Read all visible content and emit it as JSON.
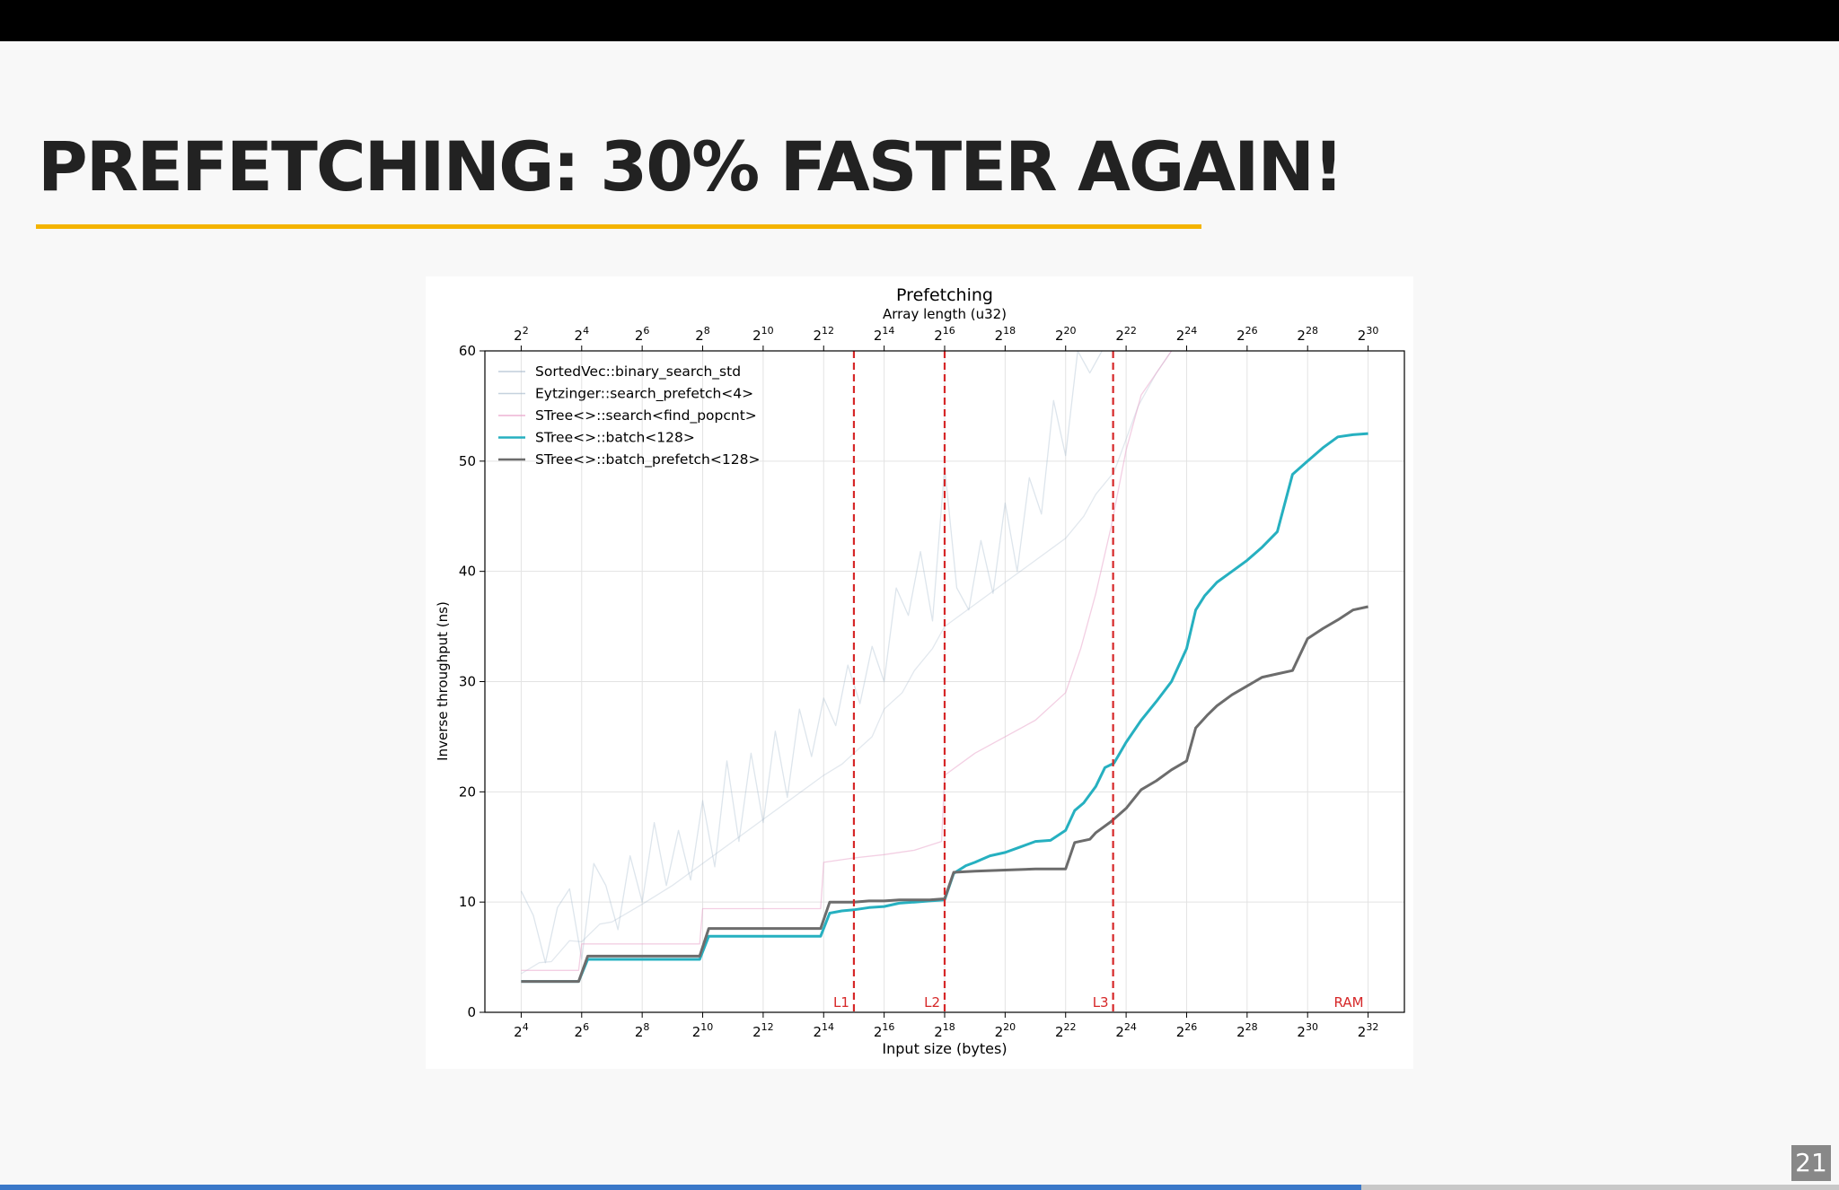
{
  "slide": {
    "title": "PREFETCHING: 30% FASTER AGAIN!",
    "page_number": "21",
    "progress_fraction": 0.74
  },
  "colors": {
    "accent_underline": "#f4b400",
    "progress": "#3a78c8",
    "cache_lines": "#d62728"
  },
  "chart_data": {
    "type": "line",
    "title": "Prefetching",
    "top_axis_label": "Array length (u32)",
    "xlabel": "Input size (bytes)",
    "ylabel": "Inverse throughput (ns)",
    "x_scale": "log2",
    "xlim_log2_bytes": [
      2.8,
      33.2
    ],
    "ylim": [
      0,
      60
    ],
    "yticks": [
      0,
      10,
      20,
      30,
      40,
      50,
      60
    ],
    "bottom_ticks": [
      {
        "base": "2",
        "exp": "4",
        "log2": 4
      },
      {
        "base": "2",
        "exp": "6",
        "log2": 6
      },
      {
        "base": "2",
        "exp": "8",
        "log2": 8
      },
      {
        "base": "2",
        "exp": "10",
        "log2": 10
      },
      {
        "base": "2",
        "exp": "12",
        "log2": 12
      },
      {
        "base": "2",
        "exp": "14",
        "log2": 14
      },
      {
        "base": "2",
        "exp": "16",
        "log2": 16
      },
      {
        "base": "2",
        "exp": "18",
        "log2": 18
      },
      {
        "base": "2",
        "exp": "20",
        "log2": 20
      },
      {
        "base": "2",
        "exp": "22",
        "log2": 22
      },
      {
        "base": "2",
        "exp": "24",
        "log2": 24
      },
      {
        "base": "2",
        "exp": "26",
        "log2": 26
      },
      {
        "base": "2",
        "exp": "28",
        "log2": 28
      },
      {
        "base": "2",
        "exp": "30",
        "log2": 30
      },
      {
        "base": "2",
        "exp": "32",
        "log2": 32
      }
    ],
    "top_ticks": [
      {
        "base": "2",
        "exp": "2",
        "log2_length": 2
      },
      {
        "base": "2",
        "exp": "4",
        "log2_length": 4
      },
      {
        "base": "2",
        "exp": "6",
        "log2_length": 6
      },
      {
        "base": "2",
        "exp": "8",
        "log2_length": 8
      },
      {
        "base": "2",
        "exp": "10",
        "log2_length": 10
      },
      {
        "base": "2",
        "exp": "12",
        "log2_length": 12
      },
      {
        "base": "2",
        "exp": "14",
        "log2_length": 14
      },
      {
        "base": "2",
        "exp": "16",
        "log2_length": 16
      },
      {
        "base": "2",
        "exp": "18",
        "log2_length": 18
      },
      {
        "base": "2",
        "exp": "20",
        "log2_length": 20
      },
      {
        "base": "2",
        "exp": "22",
        "log2_length": 22
      },
      {
        "base": "2",
        "exp": "24",
        "log2_length": 24
      },
      {
        "base": "2",
        "exp": "26",
        "log2_length": 26
      },
      {
        "base": "2",
        "exp": "28",
        "log2_length": 28
      },
      {
        "base": "2",
        "exp": "30",
        "log2_length": 30
      }
    ],
    "cache_levels": [
      {
        "label": "L1",
        "log2_bytes": 15,
        "line": true
      },
      {
        "label": "L2",
        "log2_bytes": 18,
        "line": true
      },
      {
        "label": "L3",
        "log2_bytes": 23.57,
        "line": true
      },
      {
        "label": "RAM",
        "log2_bytes": 32,
        "line": false
      }
    ],
    "legend_position": "upper-left",
    "grid": true,
    "series": [
      {
        "name": "SortedVec::binary_search_std",
        "color": "#9fb4c8",
        "opacity": 0.35,
        "width": 1.3,
        "x_log2_bytes": [
          4,
          4.4,
          4.8,
          5.2,
          5.6,
          6,
          6.4,
          6.8,
          7.2,
          7.6,
          8,
          8.4,
          8.8,
          9.2,
          9.6,
          10,
          10.4,
          10.8,
          11.2,
          11.6,
          12,
          12.4,
          12.8,
          13.2,
          13.6,
          14,
          14.4,
          14.8,
          15.2,
          15.6,
          16,
          16.4,
          16.8,
          17.2,
          17.6,
          18,
          18.4,
          18.8,
          19.2,
          19.6,
          20,
          20.4,
          20.8,
          21.2,
          21.6,
          22,
          22.4,
          22.8,
          23.2
        ],
        "y": [
          11,
          8.8,
          4.5,
          9.5,
          11.2,
          4.8,
          13.5,
          11.5,
          7.5,
          14.2,
          10,
          17.2,
          11.5,
          16.5,
          12,
          19.2,
          13.2,
          22.8,
          15.5,
          23.5,
          17.2,
          25.5,
          19.5,
          27.5,
          23.2,
          28.5,
          26,
          31.5,
          28,
          33.2,
          30,
          38.5,
          36,
          41.8,
          35.5,
          49.5,
          38.5,
          36.5,
          42.8,
          38,
          46.2,
          40,
          48.5,
          45.2,
          55.5,
          50.5,
          60,
          58,
          60
        ]
      },
      {
        "name": "Eytzinger::search_prefetch<4>",
        "color": "#9fb4c8",
        "opacity": 0.3,
        "width": 1.3,
        "x_log2_bytes": [
          4,
          4.6,
          5,
          5.6,
          6,
          6.6,
          7,
          8,
          9,
          10,
          11,
          12,
          13,
          14,
          14.6,
          15,
          15.6,
          16,
          16.6,
          17,
          17.6,
          18,
          19,
          20,
          21,
          22,
          22.6,
          23,
          23.6,
          24,
          24.4,
          25,
          25.5
        ],
        "y": [
          3.5,
          4.5,
          4.6,
          6.5,
          6.4,
          8,
          8.2,
          9.8,
          11.5,
          13.5,
          15.5,
          17.5,
          19.5,
          21.5,
          22.5,
          23.5,
          25,
          27.5,
          29,
          31,
          33,
          35,
          37,
          39,
          41,
          43,
          45,
          47,
          49,
          52,
          55,
          58,
          60
        ]
      },
      {
        "name": "STree<>::search<find_popcnt>",
        "color": "#e8a0c8",
        "opacity": 0.5,
        "width": 1.3,
        "x_log2_bytes": [
          4,
          5.9,
          6,
          9.9,
          10,
          13.9,
          14,
          15,
          16,
          17,
          17.9,
          18,
          19,
          20,
          21,
          22,
          22.5,
          23,
          23.5,
          24,
          24.5,
          25,
          25.5
        ],
        "y": [
          3.8,
          3.8,
          6.2,
          6.2,
          9.4,
          9.4,
          13.6,
          14,
          14.3,
          14.7,
          15.5,
          21.5,
          23.5,
          25,
          26.5,
          29,
          33,
          38,
          44,
          51,
          56,
          58,
          60
        ]
      },
      {
        "name": "STree<>::batch<128>",
        "color": "#26b0c0",
        "opacity": 1,
        "width": 3,
        "x_log2_bytes": [
          4,
          5.9,
          6.2,
          9.9,
          10.2,
          13.9,
          14.2,
          14.6,
          15,
          15.5,
          16,
          16.5,
          17,
          17.5,
          18,
          18.3,
          18.7,
          19,
          19.5,
          20,
          20.5,
          21,
          21.5,
          22,
          22.3,
          22.6,
          23,
          23.3,
          23.6,
          24,
          24.5,
          25,
          25.5,
          26,
          26.3,
          26.6,
          27,
          27.5,
          28,
          28.5,
          29,
          29.5,
          30,
          30.5,
          31,
          31.5,
          32
        ],
        "y": [
          2.8,
          2.8,
          4.8,
          4.8,
          6.9,
          6.9,
          9,
          9.2,
          9.3,
          9.5,
          9.6,
          9.9,
          10,
          10.1,
          10.2,
          12.6,
          13.3,
          13.6,
          14.2,
          14.5,
          15,
          15.5,
          15.6,
          16.5,
          18.3,
          19,
          20.5,
          22.2,
          22.6,
          24.5,
          26.5,
          28.2,
          30,
          33,
          36.5,
          37.8,
          39,
          40,
          41,
          42.2,
          43.6,
          48.8,
          50,
          51.2,
          52.2,
          52.4,
          52.5
        ]
      },
      {
        "name": "STree<>::batch_prefetch<128>",
        "color": "#6c6c6c",
        "opacity": 1,
        "width": 3,
        "x_log2_bytes": [
          4,
          5.9,
          6.2,
          9.9,
          10.2,
          13.9,
          14.2,
          15,
          15.5,
          16,
          16.5,
          17,
          17.5,
          18,
          18.3,
          19,
          20,
          21,
          22,
          22.3,
          22.8,
          23,
          23.5,
          24,
          24.5,
          25,
          25.5,
          26,
          26.3,
          26.7,
          27,
          27.5,
          28,
          28.5,
          29,
          29.5,
          30,
          30.5,
          31,
          31.5,
          32
        ],
        "y": [
          2.8,
          2.8,
          5.1,
          5.1,
          7.6,
          7.6,
          10,
          10,
          10.1,
          10.1,
          10.2,
          10.2,
          10.2,
          10.3,
          12.7,
          12.8,
          12.9,
          13,
          13,
          15.4,
          15.7,
          16.3,
          17.3,
          18.5,
          20.2,
          21,
          22,
          22.8,
          25.8,
          27,
          27.8,
          28.8,
          29.6,
          30.4,
          30.7,
          31,
          33.9,
          34.8,
          35.6,
          36.5,
          36.8
        ]
      }
    ]
  }
}
